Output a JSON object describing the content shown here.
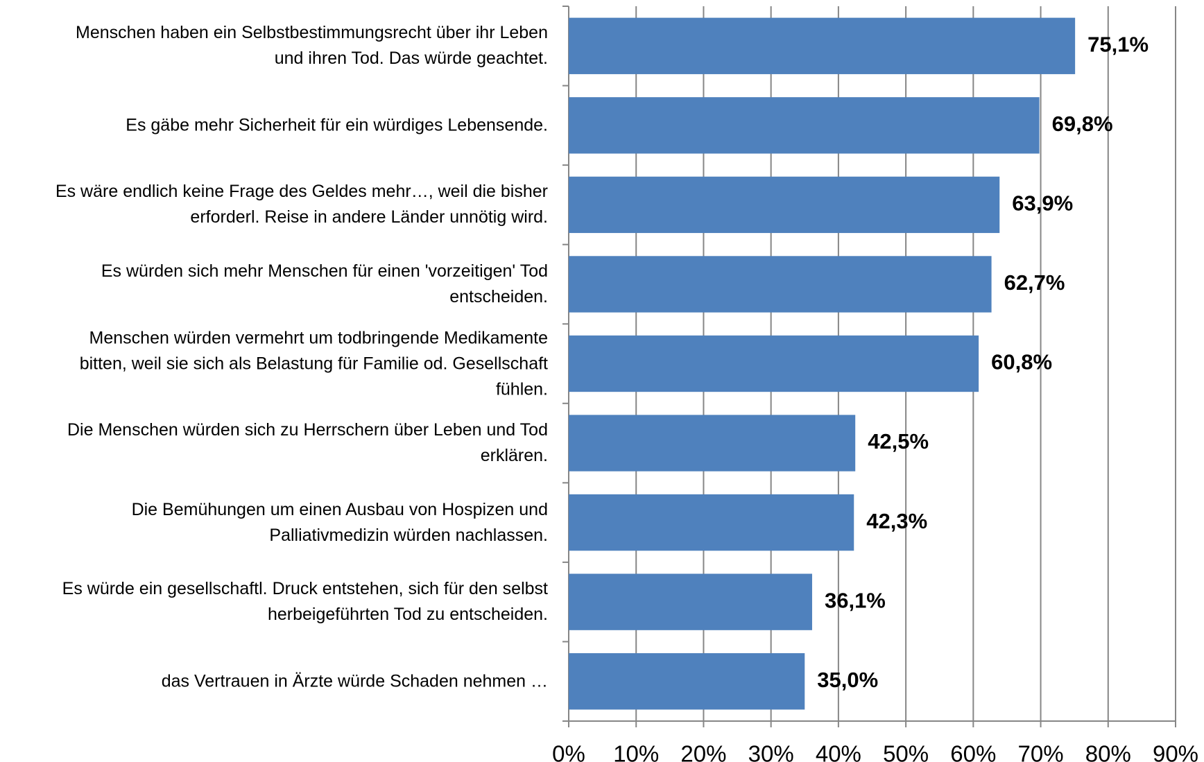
{
  "chart_data": {
    "type": "barh",
    "categories": [
      "Menschen haben ein Selbstbestimmungsrecht über ihr Leben\nund ihren Tod. Das würde geachtet.",
      "Es gäbe mehr Sicherheit für ein würdiges Lebensende.",
      "Es wäre endlich keine Frage des Geldes mehr…, weil die bisher\nerforderl. Reise in andere Länder unnötig wird.",
      "Es würden sich mehr Menschen für einen 'vorzeitigen' Tod\nentscheiden.",
      "Menschen würden vermehrt um todbringende Medikamente\nbitten, weil sie sich als Belastung für Familie od. Gesellschaft\nfühlen.",
      "Die Menschen würden sich zu Herrschern über Leben und Tod\nerklären.",
      "Die Bemühungen um einen Ausbau von Hospizen und\nPalliativmedizin würden nachlassen.",
      "Es würde ein gesellschaftl. Druck entstehen, sich für den selbst\nherbeigeführten Tod zu entscheiden.",
      "das Vertrauen in Ärzte würde Schaden nehmen …"
    ],
    "values": [
      75.1,
      69.8,
      63.9,
      62.7,
      60.8,
      42.5,
      42.3,
      36.1,
      35.0
    ],
    "value_labels": [
      "75,1%",
      "69,8%",
      "63,9%",
      "62,7%",
      "60,8%",
      "42,5%",
      "42,3%",
      "36,1%",
      "35,0%"
    ],
    "color": "#4f81bd",
    "xlim": [
      0,
      90
    ],
    "xticks": [
      {
        "value": 0,
        "label": "0%"
      },
      {
        "value": 10,
        "label": "10%"
      },
      {
        "value": 20,
        "label": "20%"
      },
      {
        "value": 30,
        "label": "30%"
      },
      {
        "value": 40,
        "label": "40%"
      },
      {
        "value": 50,
        "label": "50%"
      },
      {
        "value": 60,
        "label": "60%"
      },
      {
        "value": 70,
        "label": "70%"
      },
      {
        "value": 80,
        "label": "80%"
      },
      {
        "value": 90,
        "label": "90%"
      }
    ],
    "grid": true
  }
}
